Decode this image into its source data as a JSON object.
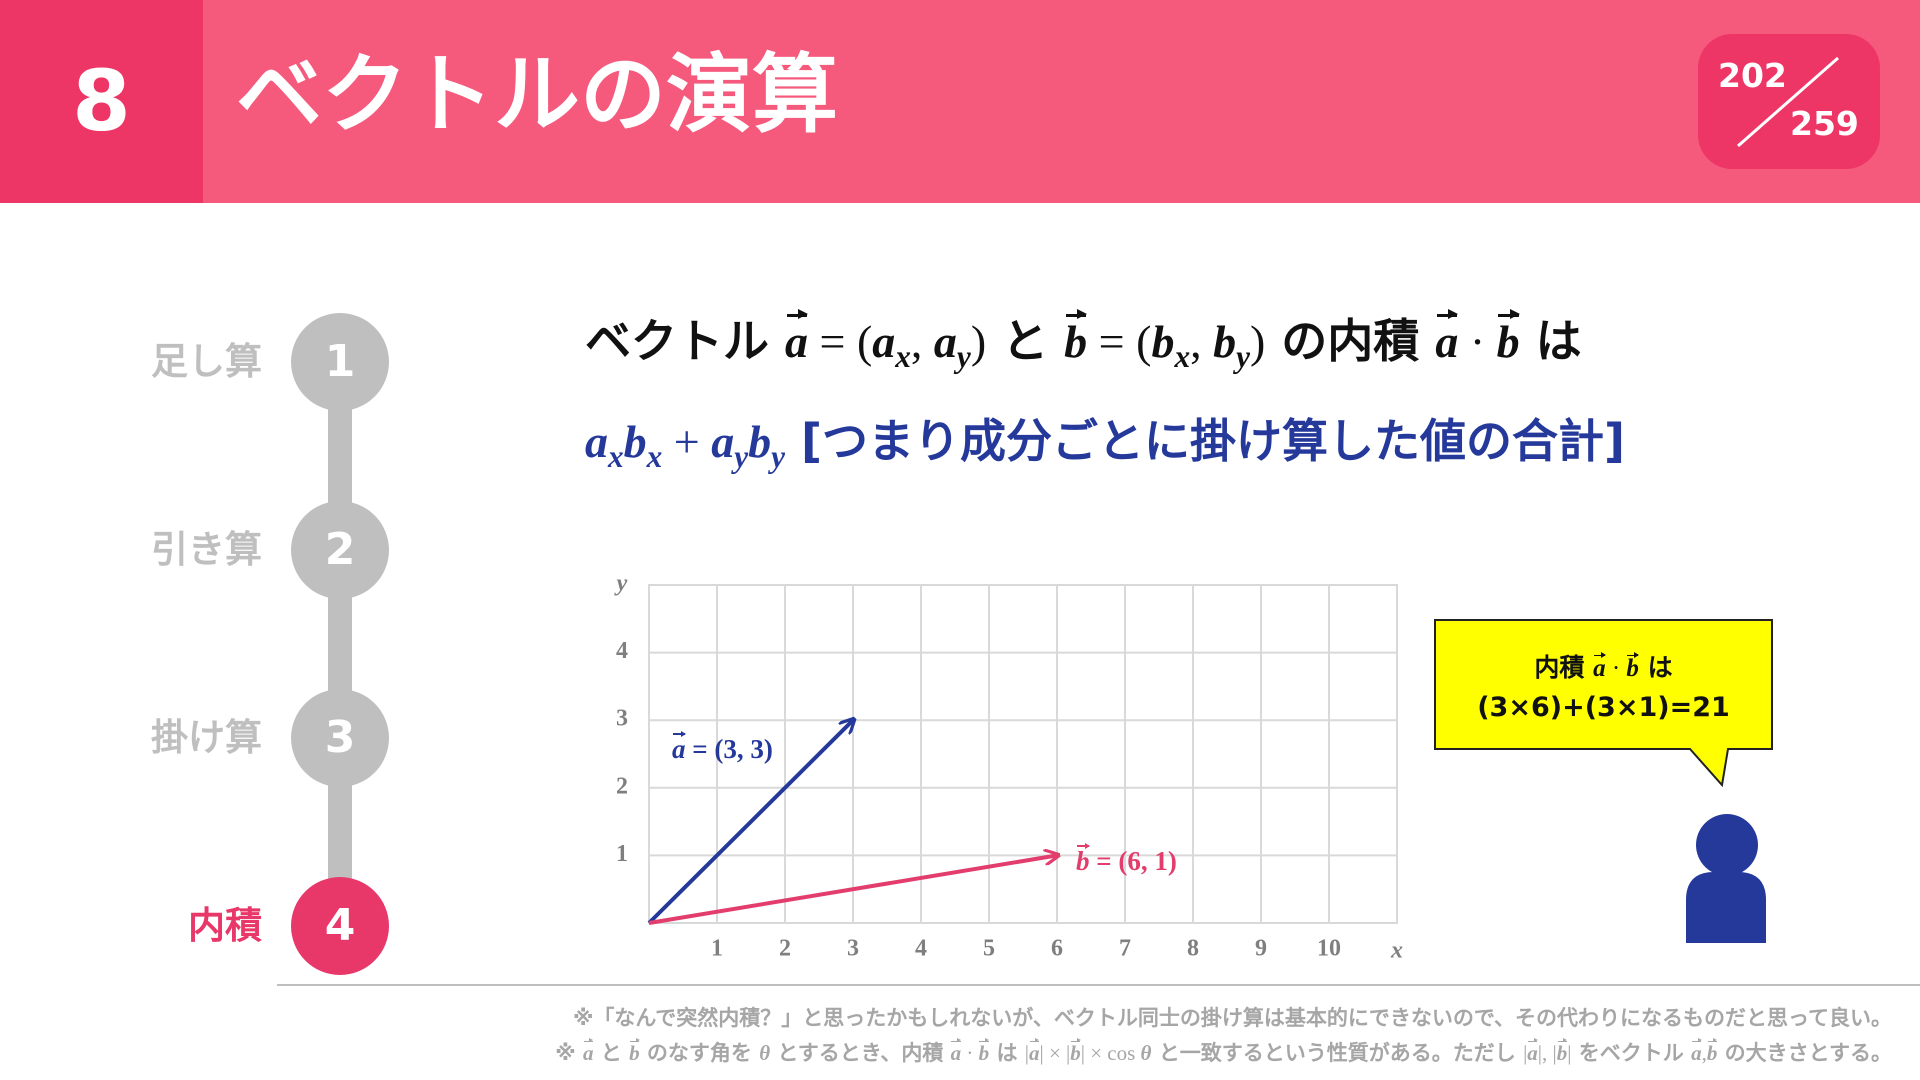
{
  "header": {
    "section_number": "8",
    "title": "ベクトルの演算",
    "page_current": "202",
    "page_total": "259"
  },
  "steps": [
    {
      "number": "1",
      "label": "足し算"
    },
    {
      "number": "2",
      "label": "引き算"
    },
    {
      "number": "3",
      "label": "掛け算"
    },
    {
      "number": "4",
      "label": "内積",
      "active": true
    }
  ],
  "formula": {
    "line1": [
      {
        "text": "ベクトル "
      },
      {
        "text": "a",
        "style": "vec"
      },
      {
        "text": " = (",
        "style": "math"
      },
      {
        "text": "a",
        "style": "var"
      },
      {
        "text": "x",
        "style": "sub"
      },
      {
        "text": ", ",
        "style": "math"
      },
      {
        "text": "a",
        "style": "var"
      },
      {
        "text": "y",
        "style": "sub"
      },
      {
        "text": ")",
        "style": "math"
      },
      {
        "text": " と "
      },
      {
        "text": "b",
        "style": "vec"
      },
      {
        "text": " = (",
        "style": "math"
      },
      {
        "text": "b",
        "style": "var"
      },
      {
        "text": "x",
        "style": "sub"
      },
      {
        "text": ", ",
        "style": "math"
      },
      {
        "text": "b",
        "style": "var"
      },
      {
        "text": "y",
        "style": "sub"
      },
      {
        "text": ")",
        "style": "math"
      },
      {
        "text": " の内積 "
      },
      {
        "text": "a",
        "style": "vec"
      },
      {
        "text": " · ",
        "style": "math"
      },
      {
        "text": "b",
        "style": "vec"
      },
      {
        "text": " は"
      }
    ],
    "line2": [
      {
        "text": "a",
        "style": "var"
      },
      {
        "text": "x",
        "style": "sub"
      },
      {
        "text": "b",
        "style": "var"
      },
      {
        "text": "x",
        "style": "sub"
      },
      {
        "text": " + ",
        "style": "math"
      },
      {
        "text": "a",
        "style": "var"
      },
      {
        "text": "y",
        "style": "sub"
      },
      {
        "text": "b",
        "style": "var"
      },
      {
        "text": "y",
        "style": "sub"
      },
      {
        "text": " [つまり成分ごとに掛け算した値の合計]"
      }
    ]
  },
  "graph": {
    "x_label": "x",
    "y_label": "y",
    "xlim": [
      0,
      11
    ],
    "ylim": [
      0,
      5
    ],
    "xticks": [
      1,
      2,
      3,
      4,
      5,
      6,
      7,
      8,
      9,
      10
    ],
    "yticks": [
      1,
      2,
      3,
      4
    ],
    "grid": true,
    "vectors": [
      {
        "x": 3,
        "y": 3,
        "color": "#25399b",
        "label": [
          {
            "text": "a",
            "style": "vec"
          },
          {
            "text": " = (3, 3)",
            "style": "mathb"
          }
        ]
      },
      {
        "x": 6,
        "y": 1,
        "color": "#e23d6c",
        "label": [
          {
            "text": "b",
            "style": "vec"
          },
          {
            "text": " = (6, 1)",
            "style": "mathb"
          }
        ]
      }
    ]
  },
  "bubble": {
    "line1": [
      {
        "text": "内積 "
      },
      {
        "text": "a",
        "style": "vec"
      },
      {
        "text": " · ",
        "style": "math"
      },
      {
        "text": "b",
        "style": "vec"
      },
      {
        "text": " は"
      }
    ],
    "line2": [
      {
        "text": "(3×6)+(3×1)=21"
      }
    ]
  },
  "notes": {
    "line1": [
      {
        "text": "※「なんで突然内積？」と思ったかもしれないが、ベクトル同士の掛け算は基本的にできないので、その代わりになるものだと思って良い。"
      }
    ],
    "line2": [
      {
        "text": "※ "
      },
      {
        "text": "a",
        "style": "vec"
      },
      {
        "text": " と "
      },
      {
        "text": "b",
        "style": "vec"
      },
      {
        "text": " のなす角を "
      },
      {
        "text": "θ",
        "style": "var"
      },
      {
        "text": " とするとき、内積 "
      },
      {
        "text": "a",
        "style": "vec"
      },
      {
        "text": " · ",
        "style": "math"
      },
      {
        "text": "b",
        "style": "vec"
      },
      {
        "text": " は "
      },
      {
        "text": "|",
        "style": "math"
      },
      {
        "text": "a",
        "style": "vec"
      },
      {
        "text": "| × |",
        "style": "math"
      },
      {
        "text": "b",
        "style": "vec"
      },
      {
        "text": "| × cos ",
        "style": "math"
      },
      {
        "text": "θ",
        "style": "var"
      },
      {
        "text": " と一致するという性質がある。ただし "
      },
      {
        "text": "|",
        "style": "math"
      },
      {
        "text": "a",
        "style": "vec"
      },
      {
        "text": "|, |",
        "style": "math"
      },
      {
        "text": "b",
        "style": "vec"
      },
      {
        "text": "|",
        "style": "math"
      },
      {
        "text": " をベクトル "
      },
      {
        "text": "a",
        "style": "vec"
      },
      {
        "text": ",",
        "style": "math"
      },
      {
        "text": "b",
        "style": "vec"
      },
      {
        "text": " の大きさとする。"
      }
    ]
  }
}
